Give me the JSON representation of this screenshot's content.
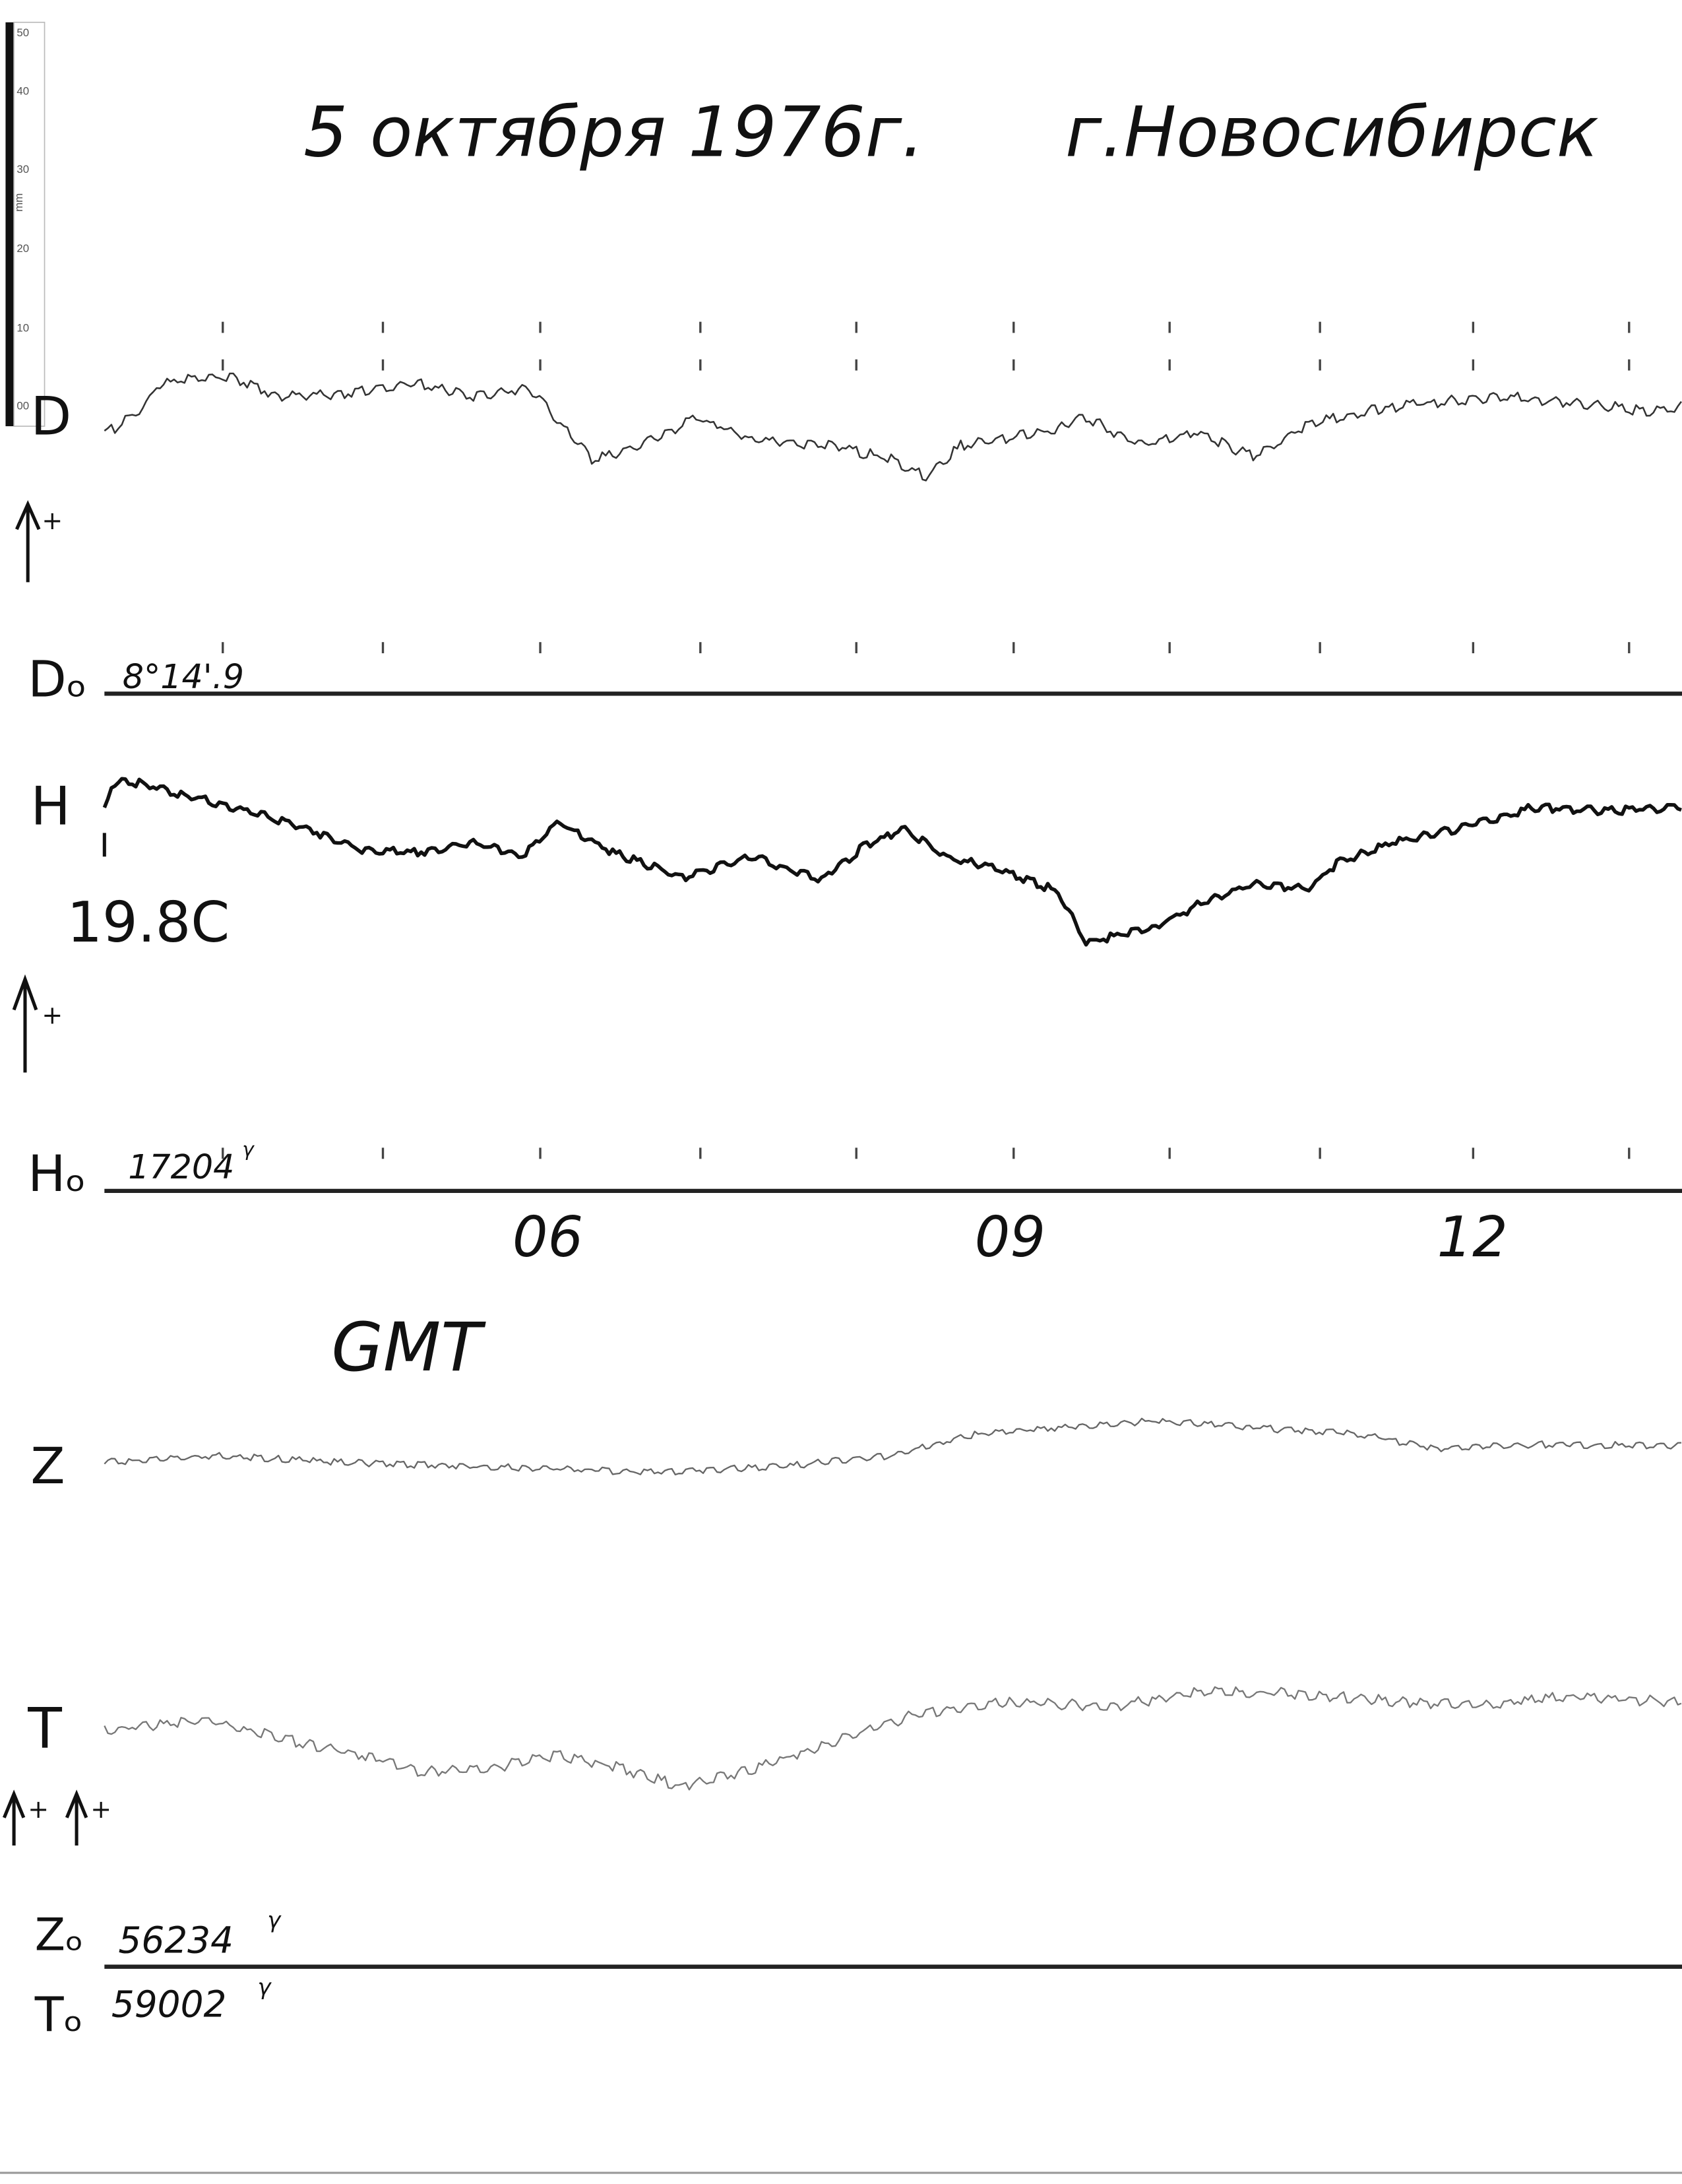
{
  "ruler": {
    "ticks": [
      "50",
      "40",
      "30",
      "20",
      "10",
      "00"
    ],
    "unit": "mm"
  },
  "header": {
    "date": "5 октября 1976г.",
    "place": "г.Новосибирск"
  },
  "channels": {
    "d": {
      "label": "D",
      "base_label": "Dₒ",
      "base_value": "8°14'.9"
    },
    "h": {
      "label": "H",
      "temperature": "19.8C",
      "base_label": "Hₒ",
      "base_value": "17204",
      "base_unit": "γ"
    },
    "z": {
      "label": "Z",
      "base_label": "Zₒ",
      "base_value": "56234",
      "base_unit": "γ"
    },
    "t": {
      "label": "T",
      "base_label": "Tₒ",
      "base_value": "59002",
      "base_unit": "γ"
    }
  },
  "plus_sign": "+",
  "time_axis": {
    "labels": [
      "06",
      "09",
      "12"
    ],
    "zone": "GMT"
  }
}
